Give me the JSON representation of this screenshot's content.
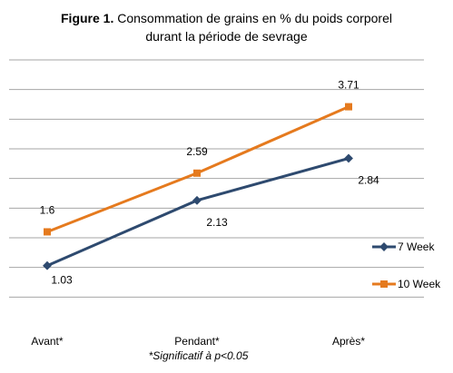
{
  "chart_data": {
    "type": "line",
    "title_bold": "Figure 1.",
    "title_line1": "Consommation de grains en % du poids corporel",
    "title_line2": "durant la période de sevrage",
    "footnote": "*Significatif à p<0.05",
    "categories": [
      "Avant*",
      "Pendant*",
      "Après*"
    ],
    "ylim": [
      0,
      4.5
    ],
    "grid": true,
    "legend": "right",
    "series": [
      {
        "name": "7 Week",
        "color": "#2e4a6f",
        "values": [
          1.03,
          2.13,
          2.84
        ],
        "labels": [
          "1.03",
          "2.13",
          "2.84"
        ]
      },
      {
        "name": "10 Week",
        "color": "#e57a1e",
        "values": [
          1.6,
          2.59,
          3.71
        ],
        "labels": [
          "1.6",
          "2.59",
          "3.71"
        ]
      }
    ]
  }
}
